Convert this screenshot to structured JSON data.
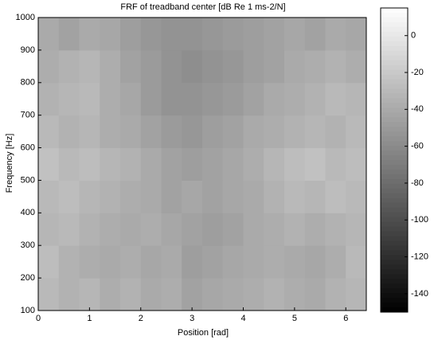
{
  "chart_data": {
    "type": "heatmap",
    "title": "FRF of treadband center [dB Re 1 ms-2/N]",
    "x_label": "Position [rad]",
    "y_label": "Frequency [Hz]",
    "xbins": [
      0,
      0.4,
      0.8,
      1.2,
      1.6,
      2.0,
      2.4,
      2.8,
      3.2,
      3.6,
      4.0,
      4.4,
      4.8,
      5.2,
      5.6,
      6.0,
      6.4
    ],
    "ybins": [
      100,
      200,
      300,
      400,
      500,
      600,
      700,
      800,
      900,
      1000
    ],
    "values": [
      [
        -30,
        -35,
        -32,
        -38,
        -35,
        -40,
        -38,
        -45,
        -42,
        -40,
        -38,
        -35,
        -38,
        -40,
        -35,
        -32
      ],
      [
        -28,
        -35,
        -38,
        -40,
        -38,
        -42,
        -40,
        -48,
        -45,
        -42,
        -40,
        -38,
        -40,
        -42,
        -38,
        -30
      ],
      [
        -32,
        -30,
        -35,
        -38,
        -40,
        -38,
        -42,
        -45,
        -48,
        -45,
        -40,
        -38,
        -35,
        -38,
        -35,
        -32
      ],
      [
        -30,
        -28,
        -32,
        -35,
        -38,
        -40,
        -45,
        -42,
        -45,
        -42,
        -40,
        -35,
        -30,
        -32,
        -28,
        -30
      ],
      [
        -25,
        -30,
        -28,
        -32,
        -35,
        -40,
        -45,
        -48,
        -45,
        -42,
        -38,
        -32,
        -28,
        -25,
        -30,
        -28
      ],
      [
        -30,
        -35,
        -32,
        -38,
        -40,
        -45,
        -50,
        -52,
        -48,
        -45,
        -40,
        -38,
        -35,
        -32,
        -35,
        -30
      ],
      [
        -35,
        -32,
        -30,
        -38,
        -42,
        -50,
        -55,
        -55,
        -52,
        -50,
        -45,
        -40,
        -38,
        -35,
        -30,
        -32
      ],
      [
        -38,
        -35,
        -32,
        -38,
        -45,
        -50,
        -55,
        -58,
        -55,
        -52,
        -48,
        -45,
        -40,
        -38,
        -35,
        -38
      ],
      [
        -40,
        -45,
        -40,
        -42,
        -48,
        -52,
        -55,
        -55,
        -52,
        -50,
        -48,
        -45,
        -42,
        -45,
        -40,
        -42
      ]
    ],
    "xlim": [
      0,
      6.4
    ],
    "xticks": [
      0,
      1,
      2,
      3,
      4,
      5,
      6
    ],
    "ylim": [
      100,
      1000
    ],
    "yticks": [
      100,
      200,
      300,
      400,
      500,
      600,
      700,
      800,
      900,
      1000
    ],
    "clim": [
      -150,
      15
    ],
    "cticks": [
      0,
      -20,
      -40,
      -60,
      -80,
      -100,
      -120,
      -140
    ],
    "colormap": "gray"
  }
}
